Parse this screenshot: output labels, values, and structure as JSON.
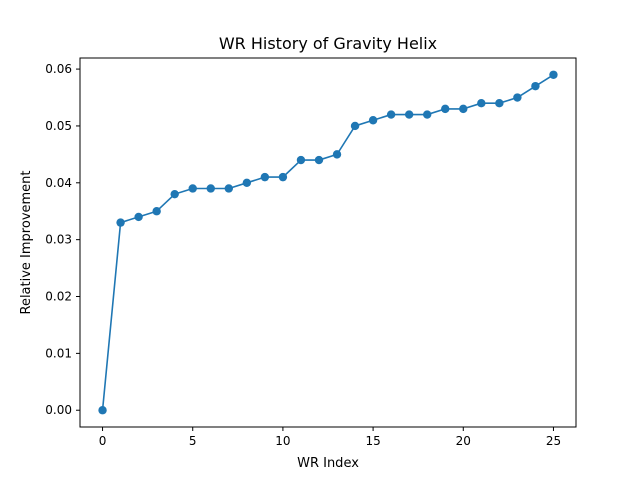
{
  "chart_data": {
    "type": "line",
    "title": "WR History of Gravity Helix",
    "xlabel": "WR Index",
    "ylabel": "Relative Improvement",
    "xlim": [
      -1.25,
      26.25
    ],
    "ylim": [
      -0.00295,
      0.06195
    ],
    "xticks": [
      0,
      5,
      10,
      15,
      20,
      25
    ],
    "xtick_labels": [
      "0",
      "5",
      "10",
      "15",
      "20",
      "25"
    ],
    "yticks": [
      0.0,
      0.01,
      0.02,
      0.03,
      0.04,
      0.05,
      0.06
    ],
    "ytick_labels": [
      "0.00",
      "0.01",
      "0.02",
      "0.03",
      "0.04",
      "0.05",
      "0.06"
    ],
    "grid": false,
    "legend": "none",
    "series": [
      {
        "color": "#1f77b4",
        "marker": "circle",
        "x": [
          0,
          1,
          2,
          3,
          4,
          5,
          6,
          7,
          8,
          9,
          10,
          11,
          12,
          13,
          14,
          15,
          16,
          17,
          18,
          19,
          20,
          21,
          22,
          23,
          24,
          25
        ],
        "y": [
          0.0,
          0.033,
          0.034,
          0.035,
          0.038,
          0.039,
          0.039,
          0.039,
          0.04,
          0.041,
          0.041,
          0.044,
          0.044,
          0.045,
          0.05,
          0.051,
          0.052,
          0.052,
          0.052,
          0.053,
          0.053,
          0.054,
          0.054,
          0.055,
          0.057,
          0.059
        ]
      }
    ]
  }
}
